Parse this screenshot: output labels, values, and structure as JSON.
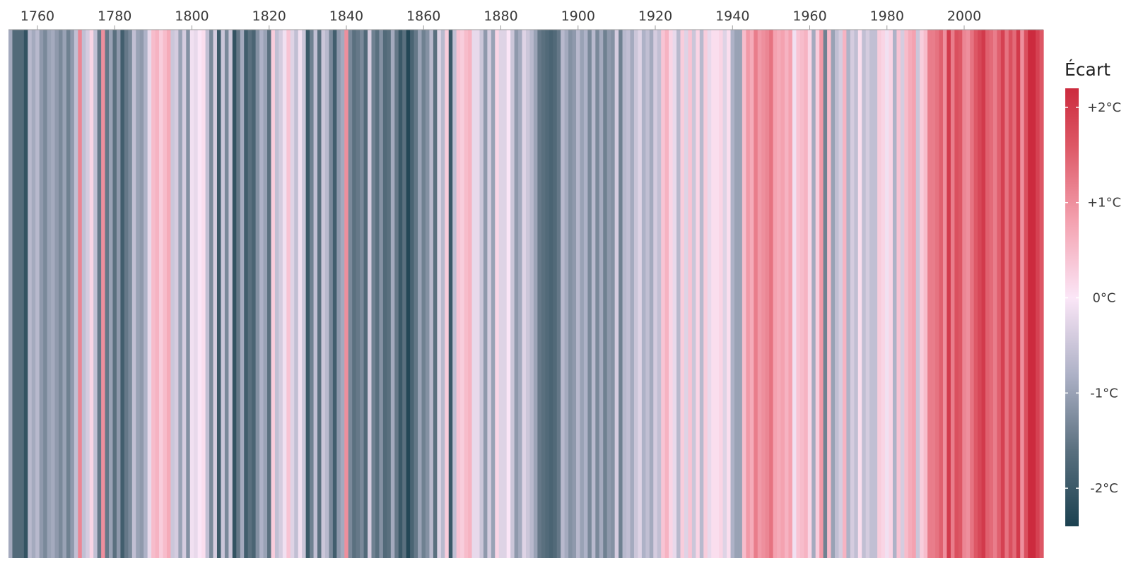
{
  "chart_data": {
    "type": "heatmap",
    "title": "",
    "xlabel": "",
    "ylabel": "",
    "x_range": [
      1753,
      2020
    ],
    "x_ticks": [
      1760,
      1780,
      1800,
      1820,
      1840,
      1860,
      1880,
      1900,
      1920,
      1940,
      1960,
      1980,
      2000
    ],
    "x_tick_labels": [
      "1760",
      "1780",
      "1800",
      "1820",
      "1840",
      "1860",
      "1880",
      "1900",
      "1920",
      "1940",
      "1960",
      "1980",
      "2000"
    ],
    "x": [
      1753,
      1754,
      1755,
      1756,
      1757,
      1758,
      1759,
      1760,
      1761,
      1762,
      1763,
      1764,
      1765,
      1766,
      1767,
      1768,
      1769,
      1770,
      1771,
      1772,
      1773,
      1774,
      1775,
      1776,
      1777,
      1778,
      1779,
      1780,
      1781,
      1782,
      1783,
      1784,
      1785,
      1786,
      1787,
      1788,
      1789,
      1790,
      1791,
      1792,
      1793,
      1794,
      1795,
      1796,
      1797,
      1798,
      1799,
      1800,
      1801,
      1802,
      1803,
      1804,
      1805,
      1806,
      1807,
      1808,
      1809,
      1810,
      1811,
      1812,
      1813,
      1814,
      1815,
      1816,
      1817,
      1818,
      1819,
      1820,
      1821,
      1822,
      1823,
      1824,
      1825,
      1826,
      1827,
      1828,
      1829,
      1830,
      1831,
      1832,
      1833,
      1834,
      1835,
      1836,
      1837,
      1838,
      1839,
      1840,
      1841,
      1842,
      1843,
      1844,
      1845,
      1846,
      1847,
      1848,
      1849,
      1850,
      1851,
      1852,
      1853,
      1854,
      1855,
      1856,
      1857,
      1858,
      1859,
      1860,
      1861,
      1862,
      1863,
      1864,
      1865,
      1866,
      1867,
      1868,
      1869,
      1870,
      1871,
      1872,
      1873,
      1874,
      1875,
      1876,
      1877,
      1878,
      1879,
      1880,
      1881,
      1882,
      1883,
      1884,
      1885,
      1886,
      1887,
      1888,
      1889,
      1890,
      1891,
      1892,
      1893,
      1894,
      1895,
      1896,
      1897,
      1898,
      1899,
      1900,
      1901,
      1902,
      1903,
      1904,
      1905,
      1906,
      1907,
      1908,
      1909,
      1910,
      1911,
      1912,
      1913,
      1914,
      1915,
      1916,
      1917,
      1918,
      1919,
      1920,
      1921,
      1922,
      1923,
      1924,
      1925,
      1926,
      1927,
      1928,
      1929,
      1930,
      1931,
      1932,
      1933,
      1934,
      1935,
      1936,
      1937,
      1938,
      1939,
      1940,
      1941,
      1942,
      1943,
      1944,
      1945,
      1946,
      1947,
      1948,
      1949,
      1950,
      1951,
      1952,
      1953,
      1954,
      1955,
      1956,
      1957,
      1958,
      1959,
      1960,
      1961,
      1962,
      1963,
      1964,
      1965,
      1966,
      1967,
      1968,
      1969,
      1970,
      1971,
      1972,
      1973,
      1974,
      1975,
      1976,
      1977,
      1978,
      1979,
      1980,
      1981,
      1982,
      1983,
      1984,
      1985,
      1986,
      1987,
      1988,
      1989,
      1990,
      1991,
      1992,
      1993,
      1994,
      1995,
      1996,
      1997,
      1998,
      1999,
      2000,
      2001,
      2002,
      2003,
      2004,
      2005,
      2006,
      2007,
      2008,
      2009,
      2010,
      2011,
      2012,
      2013,
      2014,
      2015,
      2016,
      2017,
      2018,
      2019,
      2020
    ],
    "values": [
      -0.9,
      -1.7,
      -1.7,
      -1.7,
      -2.1,
      -0.7,
      -0.9,
      -0.7,
      -1.1,
      -1.3,
      -1.0,
      -0.9,
      -1.1,
      -1.3,
      -1.0,
      -1.4,
      -1.1,
      -0.6,
      1.1,
      -0.6,
      -0.4,
      0.2,
      -0.6,
      -1.5,
      1.0,
      -1.5,
      -1.0,
      -1.6,
      -1.1,
      -1.9,
      -1.5,
      -1.3,
      -0.6,
      -1.0,
      -1.1,
      -0.8,
      -0.2,
      0.5,
      0.6,
      0.3,
      0.5,
      0.7,
      -0.5,
      -0.4,
      -1.0,
      -0.4,
      -1.2,
      -0.1,
      -0.2,
      0.0,
      0.1,
      -0.6,
      -1.3,
      -0.4,
      -2.0,
      -0.5,
      -1.3,
      -0.5,
      -2.1,
      -1.5,
      -0.9,
      -1.9,
      -1.6,
      -1.8,
      -1.2,
      -0.8,
      -1.0,
      -1.6,
      0.3,
      -0.6,
      -0.4,
      -0.1,
      0.4,
      -0.3,
      -0.6,
      -0.1,
      -0.5,
      -2.0,
      -1.4,
      -0.6,
      -1.6,
      -0.5,
      -0.7,
      -1.3,
      -1.9,
      -1.1,
      -0.9,
      1.0,
      -1.3,
      -1.6,
      -1.5,
      -1.3,
      -1.7,
      -0.4,
      -1.4,
      -1.6,
      -1.2,
      -1.7,
      -1.6,
      -0.9,
      -1.5,
      -2.0,
      -1.6,
      -2.3,
      -1.8,
      -1.5,
      -1.0,
      -1.4,
      -1.2,
      -0.7,
      -1.6,
      -0.3,
      -0.7,
      0.3,
      -2.0,
      -0.6,
      0.4,
      0.3,
      0.5,
      0.6,
      -0.2,
      -0.2,
      -0.5,
      -1.1,
      -0.4,
      -1.0,
      0.2,
      -0.3,
      -0.3,
      0.0,
      -0.5,
      -1.1,
      -0.9,
      -0.3,
      -0.5,
      -0.7,
      -1.0,
      -1.5,
      -1.6,
      -1.7,
      -1.8,
      -1.7,
      -1.5,
      -0.7,
      -0.9,
      -1.2,
      -1.1,
      -0.7,
      -1.0,
      -0.8,
      -1.3,
      -0.7,
      -1.3,
      -0.9,
      -1.4,
      -1.1,
      -1.2,
      -0.4,
      -1.4,
      -0.7,
      -0.6,
      -0.9,
      -0.5,
      -0.3,
      -0.8,
      -0.6,
      -0.9,
      -0.4,
      -0.6,
      0.4,
      0.6,
      0.2,
      -0.2,
      -0.7,
      0.3,
      -0.3,
      0.4,
      -0.5,
      0.2,
      -0.7,
      0.3,
      -0.2,
      0.1,
      0.1,
      0.2,
      -0.3,
      0.1,
      -0.8,
      -1.0,
      -1.0,
      0.5,
      0.9,
      0.7,
      1.2,
      0.9,
      1.0,
      1.1,
      1.3,
      0.8,
      0.7,
      0.8,
      0.6,
      0.8,
      -0.1,
      0.4,
      0.5,
      0.6,
      0.2,
      -0.9,
      0.3,
      0.9,
      -1.4,
      0.5,
      -1.0,
      -0.6,
      -0.4,
      0.6,
      -0.8,
      -0.4,
      -0.6,
      0.1,
      -0.6,
      -0.4,
      -0.6,
      -0.6,
      0.3,
      0.2,
      -0.1,
      0.2,
      -0.8,
      0.4,
      -0.4,
      0.5,
      0.7,
      0.8,
      -0.5,
      0.3,
      0.5,
      1.2,
      1.2,
      1.3,
      1.5,
      1.0,
      2.0,
      1.2,
      1.7,
      1.6,
      1.1,
      1.0,
      1.3,
      1.6,
      1.8,
      2.0,
      1.5,
      1.4,
      1.2,
      1.5,
      1.9,
      1.3,
      1.7,
      1.4,
      2.0,
      1.0,
      1.7,
      2.2,
      2.2,
      1.9,
      1.6
    ],
    "color_scale": {
      "min": -2.4,
      "max": 2.2,
      "stops": [
        {
          "value": -2.4,
          "color": "#1b4150"
        },
        {
          "value": -1.6,
          "color": "#5a707f"
        },
        {
          "value": -0.8,
          "color": "#aeb2c7"
        },
        {
          "value": 0.0,
          "color": "#fbe6f7"
        },
        {
          "value": 0.8,
          "color": "#f4a2b0"
        },
        {
          "value": 1.6,
          "color": "#dd5765"
        },
        {
          "value": 2.2,
          "color": "#cc2b3e"
        }
      ]
    },
    "legend": {
      "title": "Écart",
      "placement": "right",
      "ticks": [
        {
          "value": 2,
          "label": "+2°C"
        },
        {
          "value": 1,
          "label": "+1°C"
        },
        {
          "value": 0,
          "label": "0°C"
        },
        {
          "value": -1,
          "label": "-1°C"
        },
        {
          "value": -2,
          "label": "-2°C"
        }
      ]
    },
    "grid": false
  }
}
